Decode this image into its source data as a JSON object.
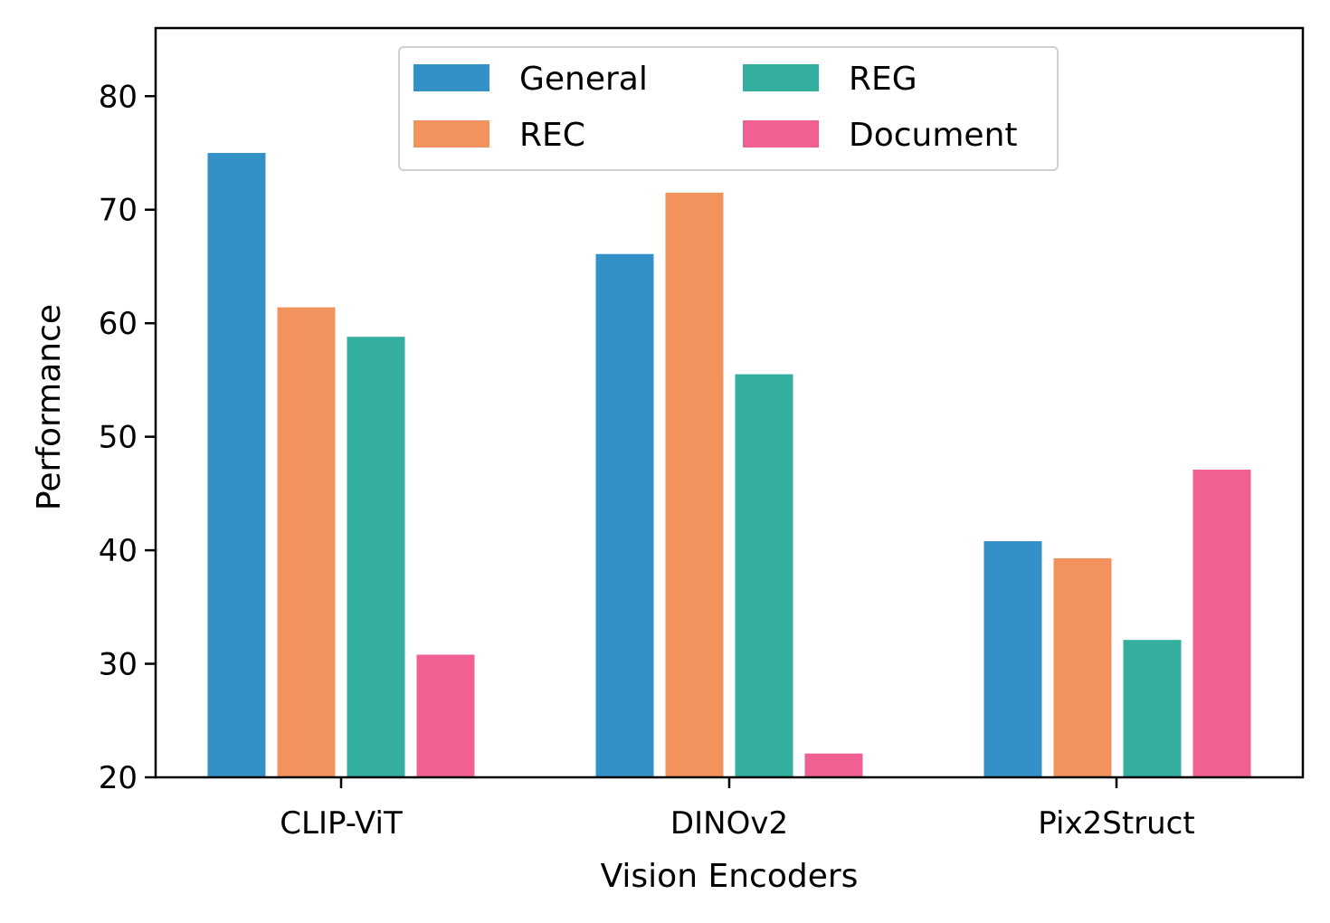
{
  "chart_data": {
    "type": "bar",
    "title": "",
    "xlabel": "Vision Encoders",
    "ylabel": "Performance",
    "categories": [
      "CLIP-ViT",
      "DINOv2",
      "Pix2Struct"
    ],
    "ylim": [
      20,
      86
    ],
    "yticks": [
      "20",
      "30",
      "40",
      "50",
      "60",
      "70",
      "80"
    ],
    "grid": false,
    "legend": {
      "placement": "top-center",
      "columns": 2
    },
    "series": [
      {
        "name": "General",
        "color": "#3491c7",
        "values": [
          75.0,
          66.1,
          40.8
        ]
      },
      {
        "name": "REC",
        "color": "#f2935e",
        "values": [
          61.4,
          71.5,
          39.3
        ]
      },
      {
        "name": "REG",
        "color": "#33ae9f",
        "values": [
          58.8,
          55.5,
          32.1
        ]
      },
      {
        "name": "Document",
        "color": "#f06092",
        "values": [
          30.8,
          22.1,
          47.1
        ]
      }
    ]
  }
}
